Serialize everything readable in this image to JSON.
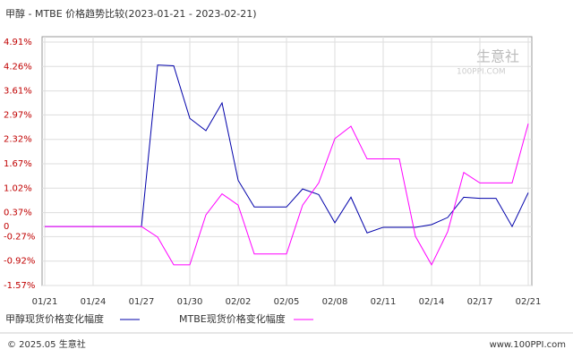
{
  "chart_data": {
    "type": "line",
    "title": "甲醇 - MTBE 价格趋势比较(2023-01-21 - 2023-02-21)",
    "categories": [
      "01/21",
      null,
      null,
      "01/24",
      null,
      null,
      "01/27",
      null,
      null,
      "01/30",
      null,
      null,
      "02/02",
      null,
      null,
      "02/05",
      null,
      null,
      "02/08",
      null,
      null,
      "02/11",
      null,
      null,
      "02/14",
      null,
      null,
      "02/17",
      null,
      null,
      "02/21"
    ],
    "series": [
      {
        "name": "甲醇现货价格变化幅度",
        "color": "#0000aa",
        "values": [
          0,
          0,
          0,
          0,
          0,
          0,
          0,
          4.3,
          4.28,
          2.88,
          2.55,
          3.29,
          1.23,
          0.52,
          0.52,
          0.52,
          1.0,
          0.85,
          0.1,
          0.78,
          -0.17,
          -0.02,
          -0.02,
          -0.02,
          0.05,
          0.24,
          0.78,
          0.75,
          0.75,
          0.0,
          0.9
        ]
      },
      {
        "name": "MTBE现货价格变化幅度",
        "color": "#ff00ff",
        "values": [
          0,
          0,
          0,
          0,
          0,
          0,
          0,
          -0.28,
          -1.02,
          -1.02,
          0.31,
          0.87,
          0.57,
          -0.73,
          -0.73,
          -0.73,
          0.57,
          1.16,
          2.34,
          2.67,
          1.8,
          1.8,
          1.8,
          -0.26,
          -1.02,
          -0.14,
          1.44,
          1.16,
          1.16,
          1.16,
          2.74
        ]
      }
    ],
    "ylim": [
      -1.57,
      4.91
    ],
    "yticks": [
      {
        "value": 4.91,
        "label": "4.91%"
      },
      {
        "value": 4.26,
        "label": "4.26%"
      },
      {
        "value": 3.61,
        "label": "3.61%"
      },
      {
        "value": 2.97,
        "label": "2.97%"
      },
      {
        "value": 2.32,
        "label": "2.32%"
      },
      {
        "value": 1.67,
        "label": "1.67%"
      },
      {
        "value": 1.02,
        "label": "1.02%"
      },
      {
        "value": 0.37,
        "label": "0.37%"
      },
      0,
      {
        "value": -0.27,
        "label": "-0.27%"
      },
      {
        "value": -0.92,
        "label": "-0.92%"
      },
      {
        "value": -1.57,
        "label": "-1.57%"
      }
    ],
    "grid": true,
    "watermark": "生意社",
    "watermark_sub": "100PPI.COM"
  },
  "footer": {
    "left": "© 2025.05 生意社",
    "right": "www.100PPI.com"
  }
}
